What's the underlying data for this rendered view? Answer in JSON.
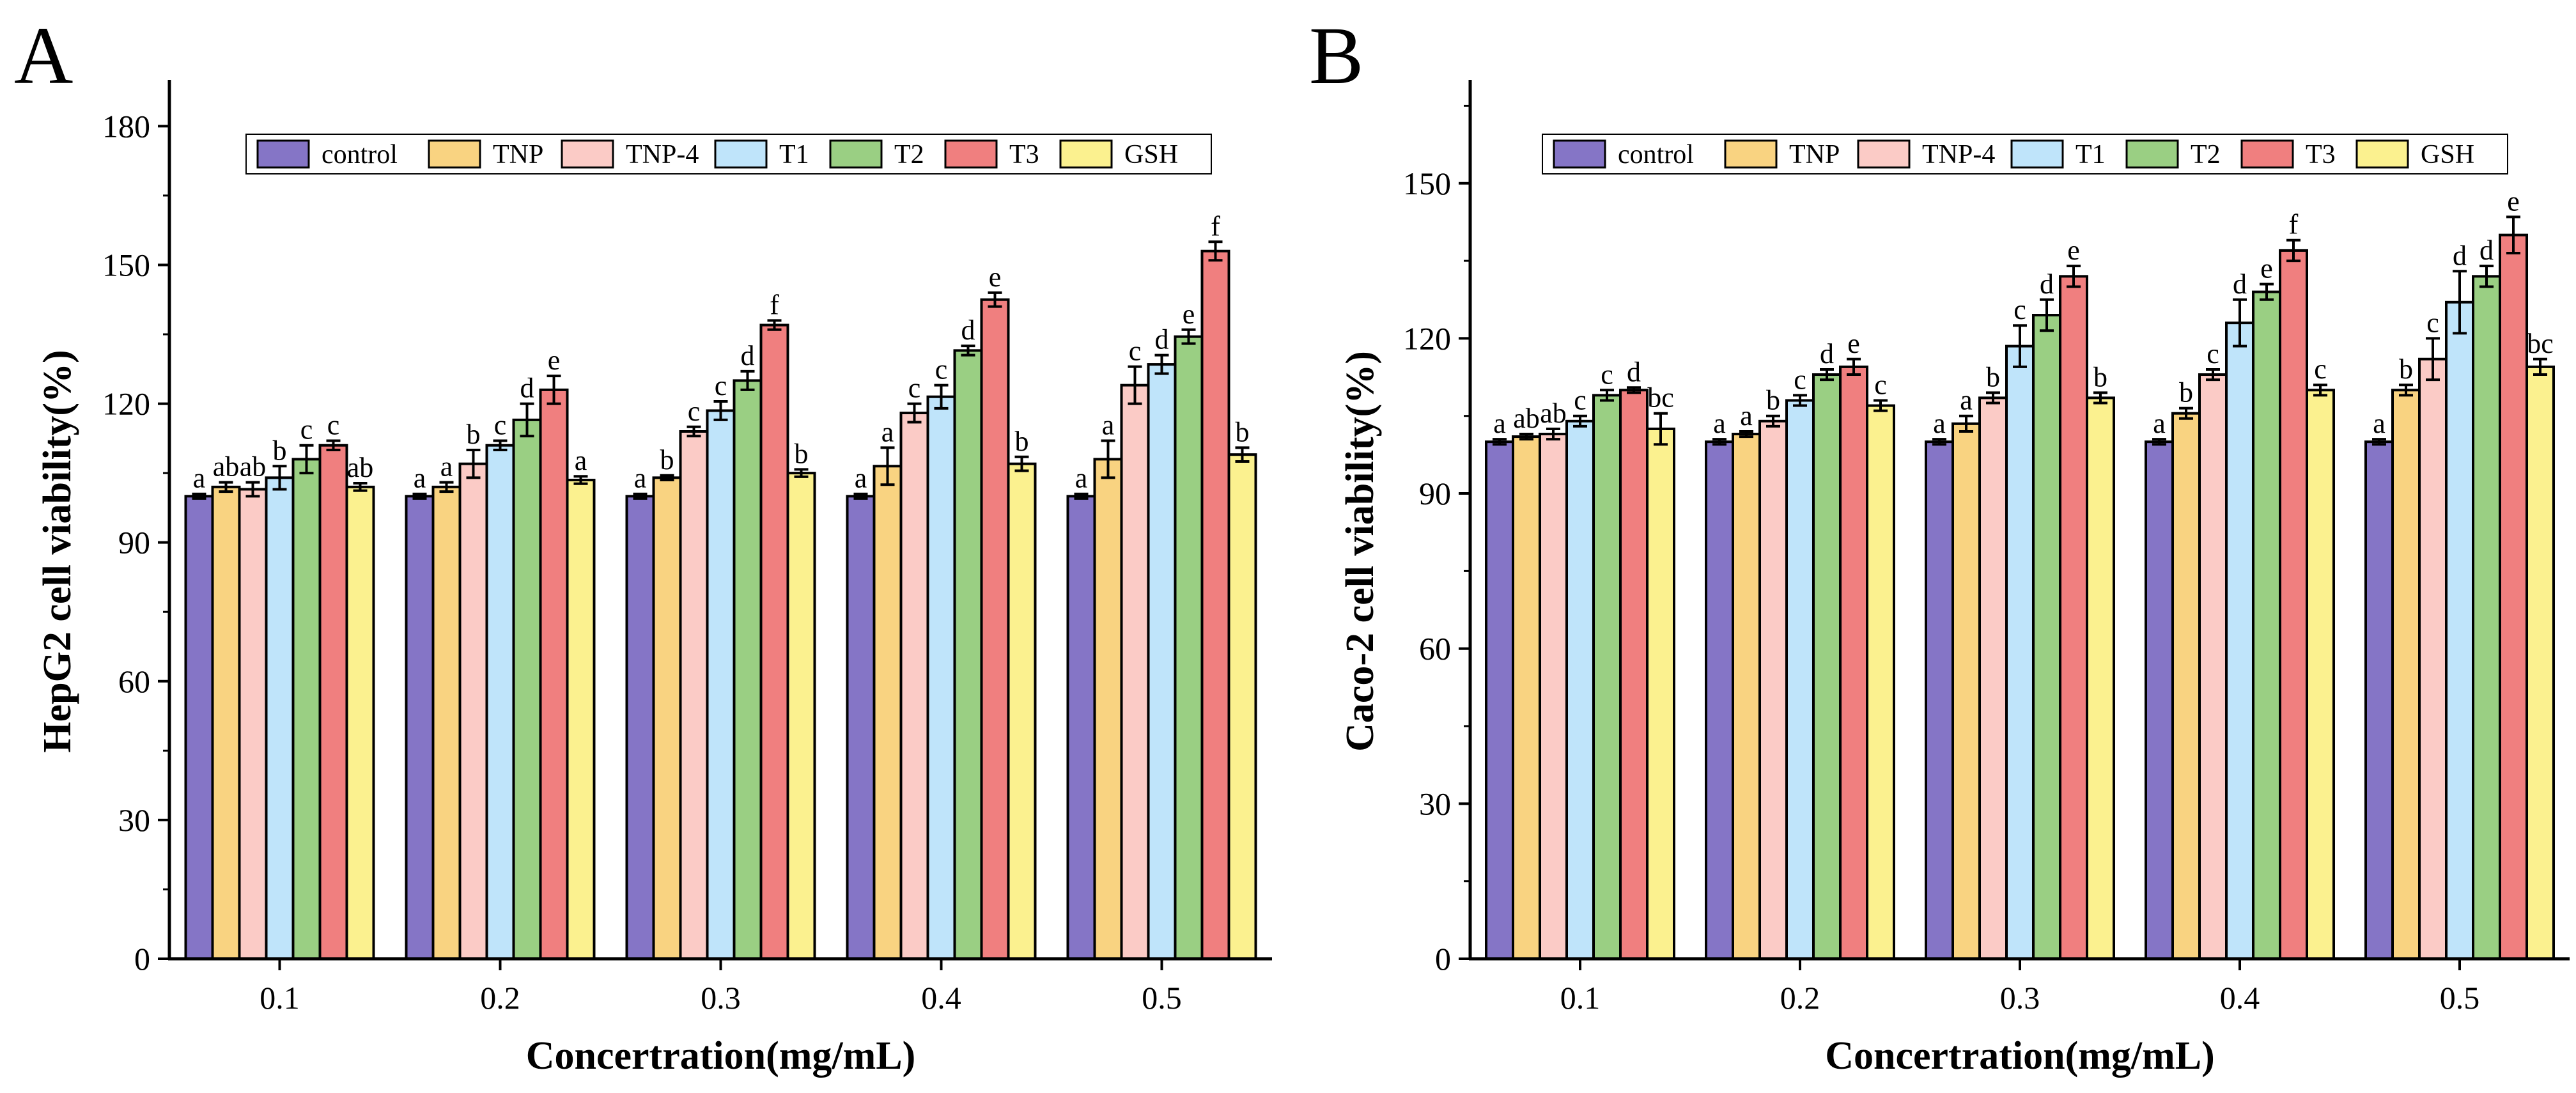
{
  "figure": {
    "colors": {
      "control": "#8575C6",
      "TNP": "#F9D381",
      "TNP-4": "#FBCBC6",
      "T1": "#BFE4FA",
      "T2": "#9ACF83",
      "T3": "#F07F7F",
      "GSH": "#FBF18F"
    }
  },
  "chart_data": [
    {
      "panel_label": "A",
      "type": "bar",
      "title": "",
      "xlabel": "Concertration(mg/mL)",
      "ylabel": "HepG2 cell viability(%)",
      "ylim": [
        0,
        190
      ],
      "yticks": [
        0,
        30,
        60,
        90,
        120,
        150,
        180
      ],
      "grid": false,
      "legend_position": "top",
      "categories": [
        "0.1",
        "0.2",
        "0.3",
        "0.4",
        "0.5"
      ],
      "series": [
        {
          "name": "control",
          "values": [
            100,
            100,
            100,
            100,
            100
          ],
          "errors": [
            0.5,
            0.5,
            0.5,
            0.5,
            0.5
          ],
          "letters": [
            "a",
            "a",
            "a",
            "a",
            "a"
          ]
        },
        {
          "name": "TNP",
          "values": [
            102,
            102,
            104,
            106.5,
            108
          ],
          "errors": [
            1,
            1,
            0.5,
            4,
            4
          ],
          "letters": [
            "ab",
            "a",
            "b",
            "a",
            "a"
          ]
        },
        {
          "name": "TNP-4",
          "values": [
            101.5,
            107,
            114,
            118,
            124
          ],
          "errors": [
            1.5,
            3,
            1,
            2,
            4
          ],
          "letters": [
            "ab",
            "b",
            "c",
            "c",
            "c"
          ]
        },
        {
          "name": "T1",
          "values": [
            104,
            111,
            118.5,
            121.5,
            128.5
          ],
          "errors": [
            2.5,
            1,
            2,
            2.5,
            2
          ],
          "letters": [
            "b",
            "c",
            "c",
            "c",
            "d"
          ]
        },
        {
          "name": "T2",
          "values": [
            108,
            116.5,
            125,
            131.5,
            134.5
          ],
          "errors": [
            3,
            3.5,
            2,
            1,
            1.5
          ],
          "letters": [
            "c",
            "d",
            "d",
            "d",
            "e"
          ]
        },
        {
          "name": "T3",
          "values": [
            111,
            123,
            137,
            142.5,
            153
          ],
          "errors": [
            1,
            3,
            1,
            1.5,
            2
          ],
          "letters": [
            "c",
            "e",
            "f",
            "e",
            "f"
          ]
        },
        {
          "name": "GSH",
          "values": [
            102,
            103.5,
            105,
            107,
            109
          ],
          "errors": [
            0.8,
            0.8,
            0.8,
            1.5,
            1.5
          ],
          "letters": [
            "ab",
            "a",
            "b",
            "b",
            "b"
          ]
        }
      ]
    },
    {
      "panel_label": "B",
      "type": "bar",
      "title": "",
      "xlabel": "Concertration(mg/mL)",
      "ylabel": "Caco-2 cell viability(%)",
      "ylim": [
        0,
        170
      ],
      "yticks": [
        0,
        30,
        60,
        90,
        120,
        150
      ],
      "grid": false,
      "legend_position": "top",
      "categories": [
        "0.1",
        "0.2",
        "0.3",
        "0.4",
        "0.5"
      ],
      "series": [
        {
          "name": "control",
          "values": [
            100,
            100,
            100,
            100,
            100
          ],
          "errors": [
            0.5,
            0.5,
            0.5,
            0.5,
            0.5
          ],
          "letters": [
            "a",
            "a",
            "a",
            "a",
            "a"
          ]
        },
        {
          "name": "TNP",
          "values": [
            101,
            101.5,
            103.5,
            105.5,
            110
          ],
          "errors": [
            0.5,
            0.5,
            1.5,
            1,
            1
          ],
          "letters": [
            "ab",
            "a",
            "a",
            "b",
            "b"
          ]
        },
        {
          "name": "TNP-4",
          "values": [
            101.5,
            104,
            108.5,
            113,
            116
          ],
          "errors": [
            1,
            1,
            1,
            1,
            4
          ],
          "letters": [
            "ab",
            "b",
            "b",
            "c",
            "c"
          ]
        },
        {
          "name": "T1",
          "values": [
            104,
            108,
            118.5,
            123,
            127
          ],
          "errors": [
            1,
            1,
            4,
            4.5,
            6
          ],
          "letters": [
            "c",
            "c",
            "c",
            "d",
            "d"
          ]
        },
        {
          "name": "T2",
          "values": [
            109,
            113,
            124.5,
            129,
            132
          ],
          "errors": [
            1,
            1,
            3,
            1.5,
            2
          ],
          "letters": [
            "c",
            "d",
            "d",
            "e",
            "d"
          ]
        },
        {
          "name": "T3",
          "values": [
            110,
            114.5,
            132,
            137,
            140
          ],
          "errors": [
            0.5,
            1.5,
            2,
            2,
            3.5
          ],
          "letters": [
            "d",
            "e",
            "e",
            "f",
            "e"
          ]
        },
        {
          "name": "GSH",
          "values": [
            102.5,
            107,
            108.5,
            110,
            114.5
          ],
          "errors": [
            3,
            1,
            1,
            1,
            1.5
          ],
          "letters": [
            "bc",
            "c",
            "b",
            "c",
            "bc"
          ]
        }
      ]
    }
  ]
}
